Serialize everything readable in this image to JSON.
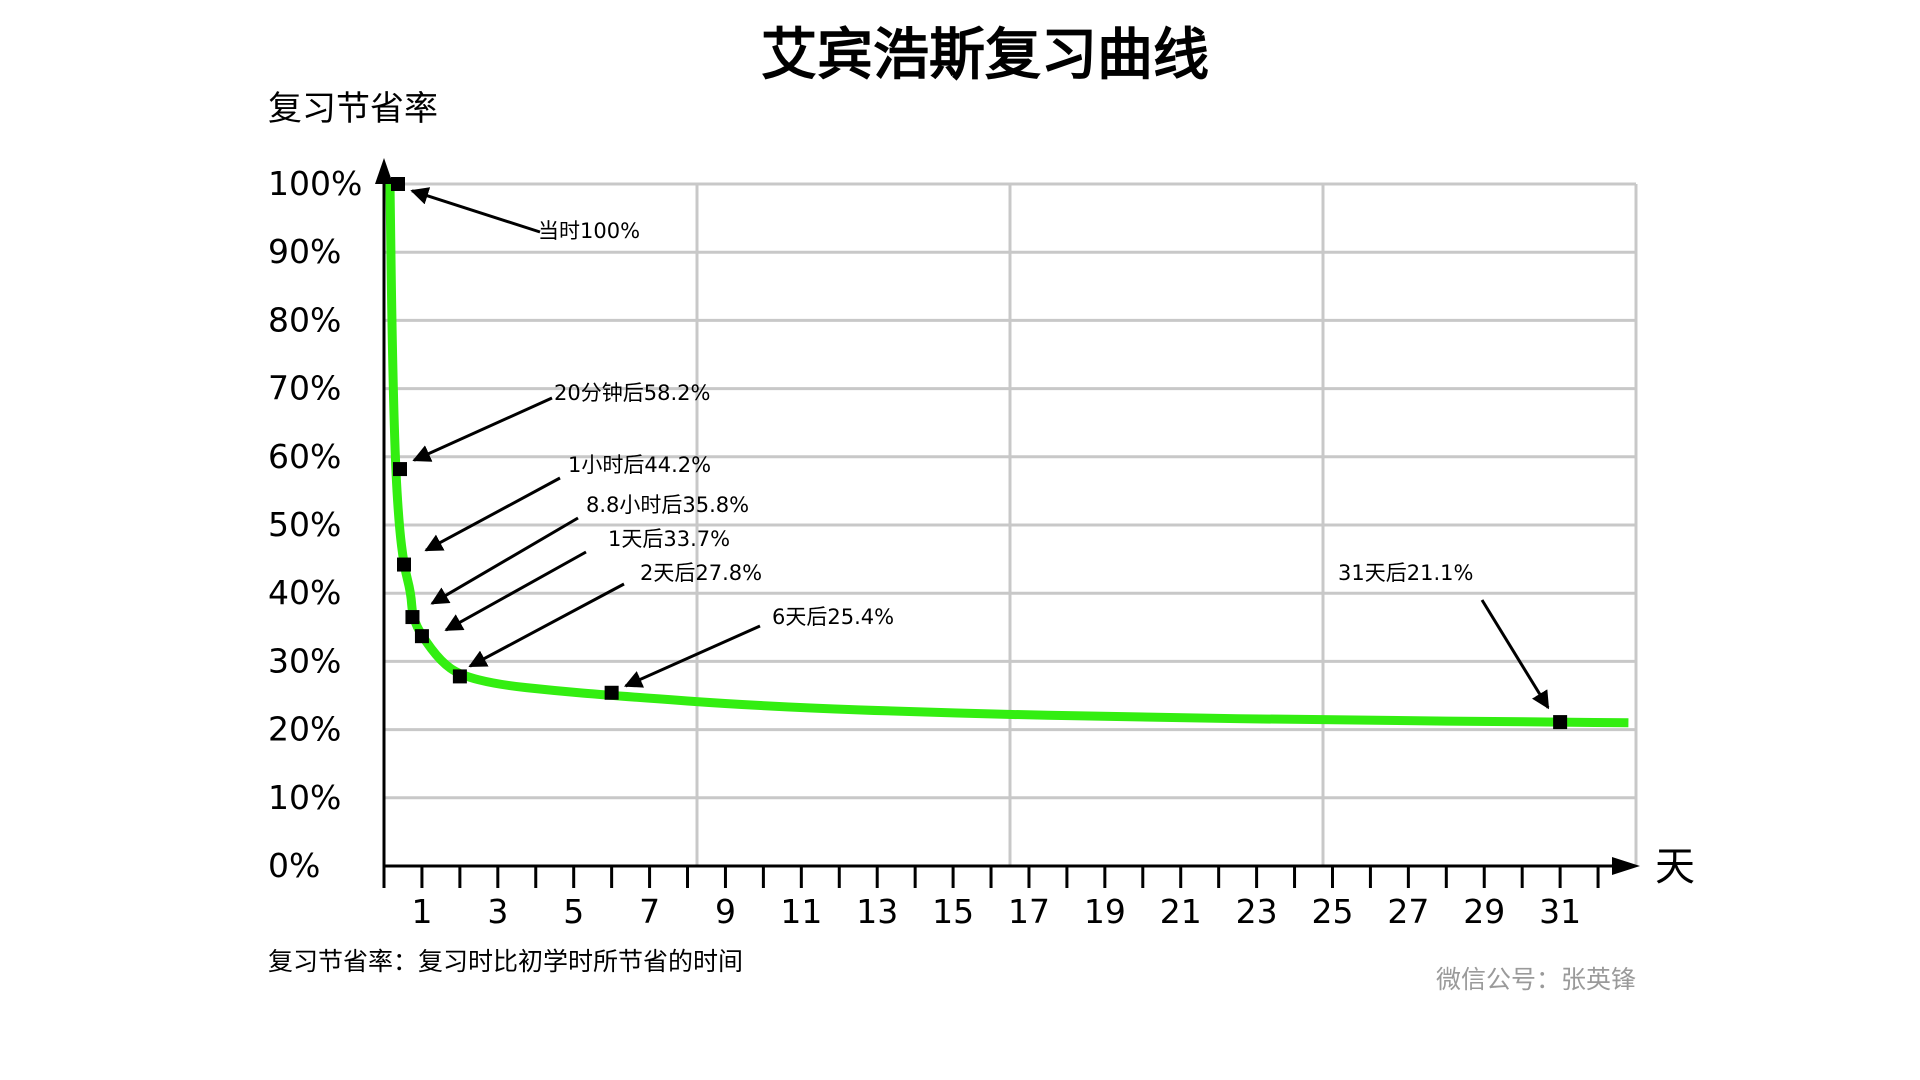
{
  "chart_data": {
    "type": "line",
    "title": "艾宾浩斯复习曲线",
    "ylabel": "复习节省率",
    "xlabel": "天",
    "ylim": [
      0,
      100
    ],
    "xlim": [
      0,
      33
    ],
    "grid": true,
    "y_ticks": [
      "0%",
      "10%",
      "20%",
      "30%",
      "40%",
      "50%",
      "60%",
      "70%",
      "80%",
      "90%",
      "100%"
    ],
    "x_ticks": [
      "1",
      "3",
      "5",
      "7",
      "9",
      "11",
      "13",
      "15",
      "17",
      "19",
      "21",
      "23",
      "25",
      "27",
      "29",
      "31"
    ],
    "series": [
      {
        "color": "#33ee11",
        "points": [
          {
            "x": 0,
            "y": 100,
            "label": "当时100%"
          },
          {
            "x": 0.0139,
            "y": 58.2,
            "label": "20分钟后58.2%"
          },
          {
            "x": 0.0417,
            "y": 44.2,
            "label": "1小时后44.2%"
          },
          {
            "x": 0.367,
            "y": 35.8,
            "label": "8.8小时后35.8%"
          },
          {
            "x": 1,
            "y": 33.7,
            "label": "1天后33.7%"
          },
          {
            "x": 2,
            "y": 27.8,
            "label": "2天后27.8%"
          },
          {
            "x": 6,
            "y": 25.4,
            "label": "6天后25.4%"
          },
          {
            "x": 31,
            "y": 21.1,
            "label": "31天后21.1%"
          }
        ]
      }
    ],
    "note": "复习节省率：复习时比初学时所节省的时间",
    "credit": "微信公号：张英锋"
  }
}
